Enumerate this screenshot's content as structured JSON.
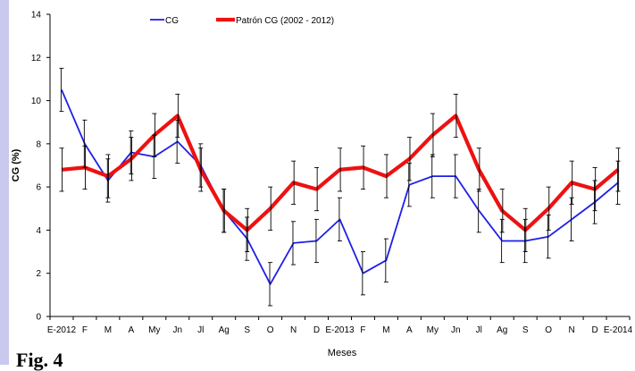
{
  "figure_label": "Fig. 4",
  "colors": {
    "cg": "#1f1fe6",
    "patron": "#ee1111",
    "axis": "#000000",
    "error": "#000000"
  },
  "chart_data": {
    "type": "line",
    "title": "",
    "xlabel": "Meses",
    "ylabel": "CG (%)",
    "ylim": [
      0,
      14
    ],
    "yticks": [
      0,
      2,
      4,
      6,
      8,
      10,
      12,
      14
    ],
    "grid": false,
    "legend_position": "top",
    "categories": [
      "E-2012",
      "F",
      "M",
      "A",
      "My",
      "Jn",
      "Jl",
      "Ag",
      "S",
      "O",
      "N",
      "D",
      "E-2013",
      "F",
      "M",
      "A",
      "My",
      "Jn",
      "Jl",
      "Ag",
      "S",
      "O",
      "N",
      "D",
      "E-2014"
    ],
    "series": [
      {
        "name": "CG",
        "color": "#1f1fe6",
        "values": [
          10.5,
          8.0,
          6.3,
          7.6,
          7.4,
          8.1,
          7.0,
          4.9,
          3.6,
          1.5,
          3.4,
          3.5,
          4.5,
          2.0,
          2.6,
          6.1,
          6.5,
          6.5,
          4.9,
          3.5,
          3.5,
          3.7,
          4.5,
          5.3,
          6.2
        ],
        "errors": [
          1.0,
          1.1,
          1.0,
          1.0,
          1.0,
          1.0,
          1.0,
          1.0,
          1.0,
          1.0,
          1.0,
          1.0,
          1.0,
          1.0,
          1.0,
          1.0,
          1.0,
          1.0,
          1.0,
          1.0,
          1.0,
          1.0,
          1.0,
          1.0,
          1.0
        ]
      },
      {
        "name": "Patrón CG (2002 - 2012)",
        "color": "#ee1111",
        "values": [
          6.8,
          6.9,
          6.5,
          7.3,
          8.4,
          9.3,
          6.8,
          4.9,
          4.0,
          5.0,
          6.2,
          5.9,
          6.8,
          6.9,
          6.5,
          7.3,
          8.4,
          9.3,
          6.8,
          4.9,
          4.0,
          5.0,
          6.2,
          5.9,
          6.8
        ],
        "errors": [
          1.0,
          1.0,
          1.0,
          1.0,
          1.0,
          1.0,
          1.0,
          1.0,
          1.0,
          1.0,
          1.0,
          1.0,
          1.0,
          1.0,
          1.0,
          1.0,
          1.0,
          1.0,
          1.0,
          1.0,
          1.0,
          1.0,
          1.0,
          1.0,
          1.0
        ]
      }
    ]
  }
}
